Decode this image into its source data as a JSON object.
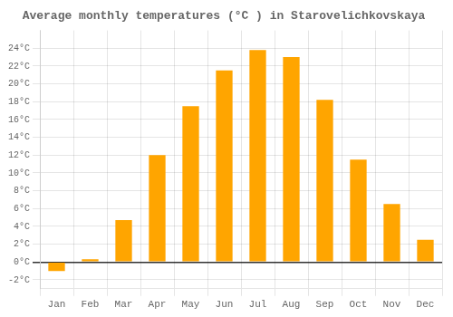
{
  "chart_data": {
    "type": "bar",
    "title": "Average monthly temperatures (°C ) in Starovelichkovskaya",
    "categories": [
      "Jan",
      "Feb",
      "Mar",
      "Apr",
      "May",
      "Jun",
      "Jul",
      "Aug",
      "Sep",
      "Oct",
      "Nov",
      "Dec"
    ],
    "values": [
      -1.0,
      0.3,
      4.7,
      12.0,
      17.5,
      21.5,
      23.8,
      23.0,
      18.2,
      11.5,
      6.5,
      2.5
    ],
    "color": "#FFA500",
    "ylim": [
      -3,
      26
    ],
    "yticks": [
      {
        "value": -2,
        "label": "-2°C"
      },
      {
        "value": 0,
        "label": "0°C"
      },
      {
        "value": 2,
        "label": "2°C"
      },
      {
        "value": 4,
        "label": "4°C"
      },
      {
        "value": 6,
        "label": "6°C"
      },
      {
        "value": 8,
        "label": "8°C"
      },
      {
        "value": 10,
        "label": "10°C"
      },
      {
        "value": 12,
        "label": "12°C"
      },
      {
        "value": 14,
        "label": "14°C"
      },
      {
        "value": 16,
        "label": "16°C"
      },
      {
        "value": 18,
        "label": "18°C"
      },
      {
        "value": 20,
        "label": "20°C"
      },
      {
        "value": 22,
        "label": "22°C"
      },
      {
        "value": 24,
        "label": "24°C"
      }
    ],
    "grid": true
  }
}
